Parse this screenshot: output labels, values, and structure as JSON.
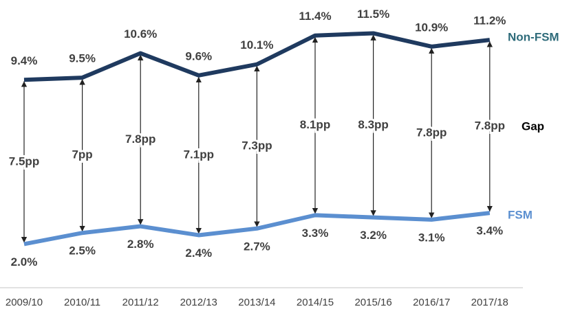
{
  "chart_data": {
    "type": "line",
    "categories": [
      "2009/10",
      "2010/11",
      "2011/12",
      "2012/13",
      "2013/14",
      "2014/15",
      "2015/16",
      "2016/17",
      "2017/18"
    ],
    "ylim": [
      0,
      13
    ],
    "series": [
      {
        "name": "Non-FSM",
        "color": "#1f3a5f",
        "label_color": "#2e6b7a",
        "values": [
          9.4,
          9.5,
          10.6,
          9.6,
          10.1,
          11.4,
          11.5,
          10.9,
          11.2
        ],
        "value_labels": [
          "9.4%",
          "9.5%",
          "10.6%",
          "9.6%",
          "10.1%",
          "11.4%",
          "11.5%",
          "10.9%",
          "11.2%"
        ]
      },
      {
        "name": "FSM",
        "color": "#5b8fd0",
        "label_color": "#5b8fd0",
        "values": [
          2.0,
          2.5,
          2.8,
          2.4,
          2.7,
          3.3,
          3.2,
          3.1,
          3.4
        ],
        "value_labels": [
          "2.0%",
          "2.5%",
          "2.8%",
          "2.4%",
          "2.7%",
          "3.3%",
          "3.2%",
          "3.1%",
          "3.4%"
        ]
      }
    ],
    "gap_title": "Gap",
    "gap_labels": [
      "7.5pp",
      "7pp",
      "7.8pp",
      "7.1pp",
      "7.3pp",
      "8.1pp",
      "8.3pp",
      "7.8pp",
      "7.8pp"
    ]
  }
}
